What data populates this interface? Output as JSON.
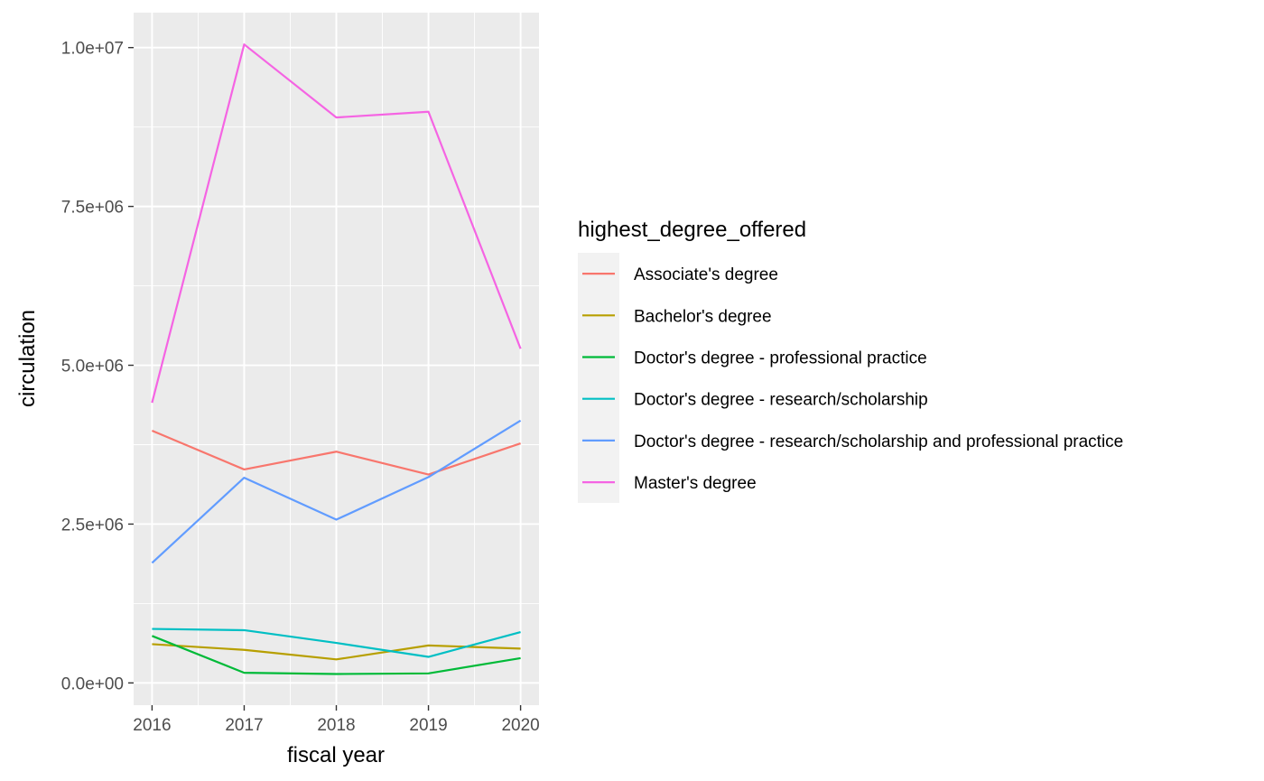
{
  "chart_data": {
    "type": "line",
    "xlabel": "fiscal year",
    "ylabel": "circulation",
    "x": [
      2016,
      2017,
      2018,
      2019,
      2020
    ],
    "x_tick_labels": [
      "2016",
      "2017",
      "2018",
      "2019",
      "2020"
    ],
    "xlim": [
      2015.8,
      2020.2
    ],
    "y_ticks": [
      0,
      2500000,
      5000000,
      7500000,
      10000000
    ],
    "y_tick_labels": [
      "0.0e+00",
      "2.5e+06",
      "5.0e+06",
      "7.5e+06",
      "1.0e+07"
    ],
    "ylim": [
      -350000,
      10550000
    ],
    "grid": true,
    "legend_title": "highest_degree_offered",
    "legend_position": "right",
    "series": [
      {
        "name": "Associate's degree",
        "color": "#F8766D",
        "values": [
          3970000,
          3360000,
          3640000,
          3280000,
          3770000
        ]
      },
      {
        "name": "Bachelor's degree",
        "color": "#B79F00",
        "values": [
          610000,
          520000,
          370000,
          590000,
          540000
        ]
      },
      {
        "name": "Doctor's degree - professional practice",
        "color": "#00BA38",
        "values": [
          740000,
          160000,
          140000,
          150000,
          390000
        ]
      },
      {
        "name": "Doctor's degree - research/scholarship",
        "color": "#00BFC4",
        "values": [
          850000,
          830000,
          630000,
          410000,
          800000
        ]
      },
      {
        "name": "Doctor's degree - research/scholarship and professional practice",
        "color": "#619CFF",
        "values": [
          1890000,
          3230000,
          2570000,
          3240000,
          4130000
        ]
      },
      {
        "name": "Master's degree",
        "color": "#F564E3",
        "values": [
          4410000,
          10050000,
          8900000,
          8990000,
          5260000
        ]
      }
    ]
  }
}
